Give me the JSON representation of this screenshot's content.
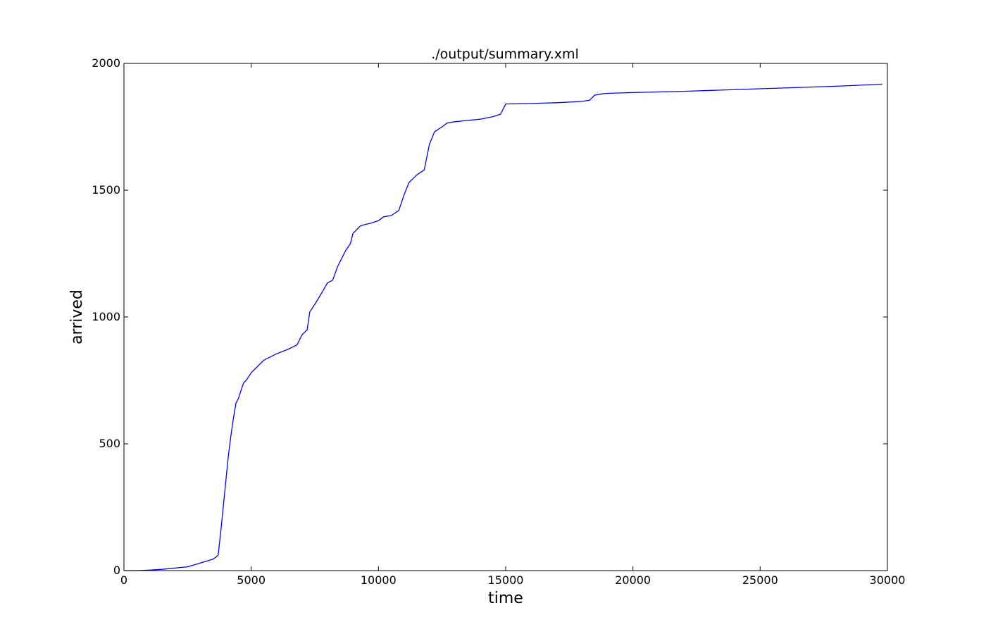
{
  "chart_data": {
    "type": "line",
    "title": "./output/summary.xml",
    "xlabel": "time",
    "ylabel": "arrived",
    "xlim": [
      0,
      30000
    ],
    "ylim": [
      0,
      2000
    ],
    "x_ticks": [
      "0",
      "5000",
      "10000",
      "15000",
      "20000",
      "25000",
      "30000"
    ],
    "y_ticks": [
      "0",
      "500",
      "1000",
      "1500",
      "2000"
    ],
    "grid": false,
    "legend": "none",
    "line_color": "#0000ff",
    "series": [
      {
        "x": [
          0,
          500,
          1000,
          1500,
          2000,
          2500,
          3000,
          3500,
          3700,
          3800,
          3900,
          4000,
          4100,
          4200,
          4300,
          4400,
          4500,
          4700,
          4800,
          5000,
          5200,
          5500,
          6000,
          6500,
          6800,
          7000,
          7200,
          7300,
          7500,
          7800,
          8000,
          8200,
          8400,
          8700,
          8900,
          9000,
          9300,
          9700,
          10000,
          10200,
          10500,
          10800,
          11000,
          11200,
          11500,
          11800,
          12000,
          12200,
          12500,
          12700,
          13000,
          13500,
          14000,
          14500,
          14800,
          15000,
          16000,
          17000,
          18000,
          18300,
          18500,
          18800,
          19000,
          20000,
          22000,
          25000,
          28000,
          29800
        ],
        "y": [
          0,
          0,
          2,
          5,
          10,
          15,
          30,
          45,
          60,
          150,
          250,
          350,
          450,
          530,
          600,
          660,
          680,
          740,
          750,
          780,
          800,
          830,
          855,
          875,
          890,
          930,
          950,
          1020,
          1050,
          1100,
          1135,
          1145,
          1200,
          1260,
          1290,
          1330,
          1360,
          1370,
          1380,
          1395,
          1400,
          1420,
          1480,
          1530,
          1560,
          1580,
          1680,
          1730,
          1750,
          1765,
          1770,
          1775,
          1780,
          1790,
          1800,
          1840,
          1842,
          1845,
          1850,
          1855,
          1875,
          1880,
          1882,
          1885,
          1890,
          1900,
          1910,
          1918
        ]
      }
    ]
  }
}
